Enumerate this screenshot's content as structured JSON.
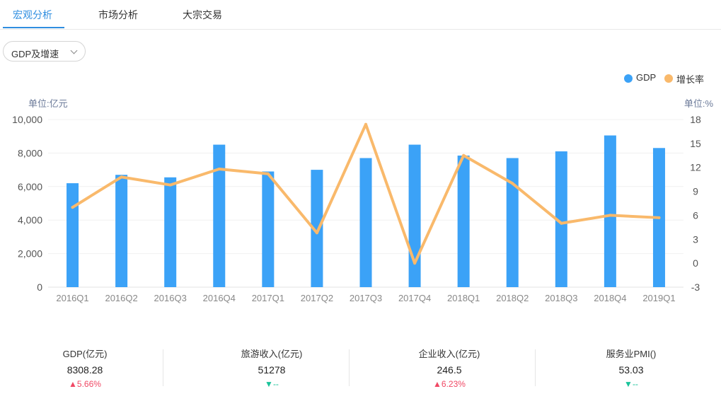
{
  "tabs": [
    {
      "label": "宏观分析",
      "active": true
    },
    {
      "label": "市场分析",
      "active": false
    },
    {
      "label": "大宗交易",
      "active": false
    }
  ],
  "selector": {
    "value": "GDP及增速"
  },
  "colors": {
    "accent": "#2f8ee0",
    "bar": "#3ba2f7",
    "line": "#f9b96b",
    "up": "#f04864",
    "down": "#19c39a"
  },
  "chart_data": {
    "type": "bar",
    "categories": [
      "2016Q1",
      "2016Q2",
      "2016Q3",
      "2016Q4",
      "2017Q1",
      "2017Q2",
      "2017Q3",
      "2017Q4",
      "2018Q1",
      "2018Q2",
      "2018Q3",
      "2018Q4",
      "2019Q1"
    ],
    "series": [
      {
        "name": "GDP",
        "type": "bar",
        "axis": "left",
        "color": "#3ba2f7",
        "values": [
          6200,
          6700,
          6550,
          8500,
          6900,
          7000,
          7700,
          8500,
          7850,
          7700,
          8100,
          9050,
          8300
        ]
      },
      {
        "name": "增长率",
        "type": "line",
        "axis": "right",
        "color": "#f9b96b",
        "values": [
          7.0,
          10.8,
          9.8,
          11.8,
          11.2,
          3.8,
          17.4,
          0.0,
          13.5,
          10.0,
          5.0,
          6.0,
          5.7
        ]
      }
    ],
    "y_left": {
      "unit_label": "单位:亿元",
      "min": 0,
      "max": 10000,
      "ticks": [
        "0",
        "2,000",
        "4,000",
        "6,000",
        "8,000",
        "10,000"
      ]
    },
    "y_right": {
      "unit_label": "单位:%",
      "min": -3,
      "max": 18,
      "ticks": [
        "-3",
        "0",
        "3",
        "6",
        "9",
        "12",
        "15",
        "18"
      ]
    },
    "legend": [
      {
        "label": "GDP",
        "color": "#3ba2f7"
      },
      {
        "label": "增长率",
        "color": "#f9b96b"
      }
    ],
    "legend_position": "top-right",
    "grid": true
  },
  "stats": [
    {
      "name": "GDP(亿元)",
      "value": "8308.28",
      "arrow": "▲",
      "change": "5.66%",
      "direction": "up"
    },
    {
      "name": "旅游收入(亿元)",
      "value": "51278",
      "arrow": "▼",
      "change": "--",
      "direction": "down"
    },
    {
      "name": "企业收入(亿元)",
      "value": "246.5",
      "arrow": "▲",
      "change": "6.23%",
      "direction": "up"
    },
    {
      "name": "服务业PMI()",
      "value": "53.03",
      "arrow": "▼",
      "change": "--",
      "direction": "down"
    }
  ]
}
